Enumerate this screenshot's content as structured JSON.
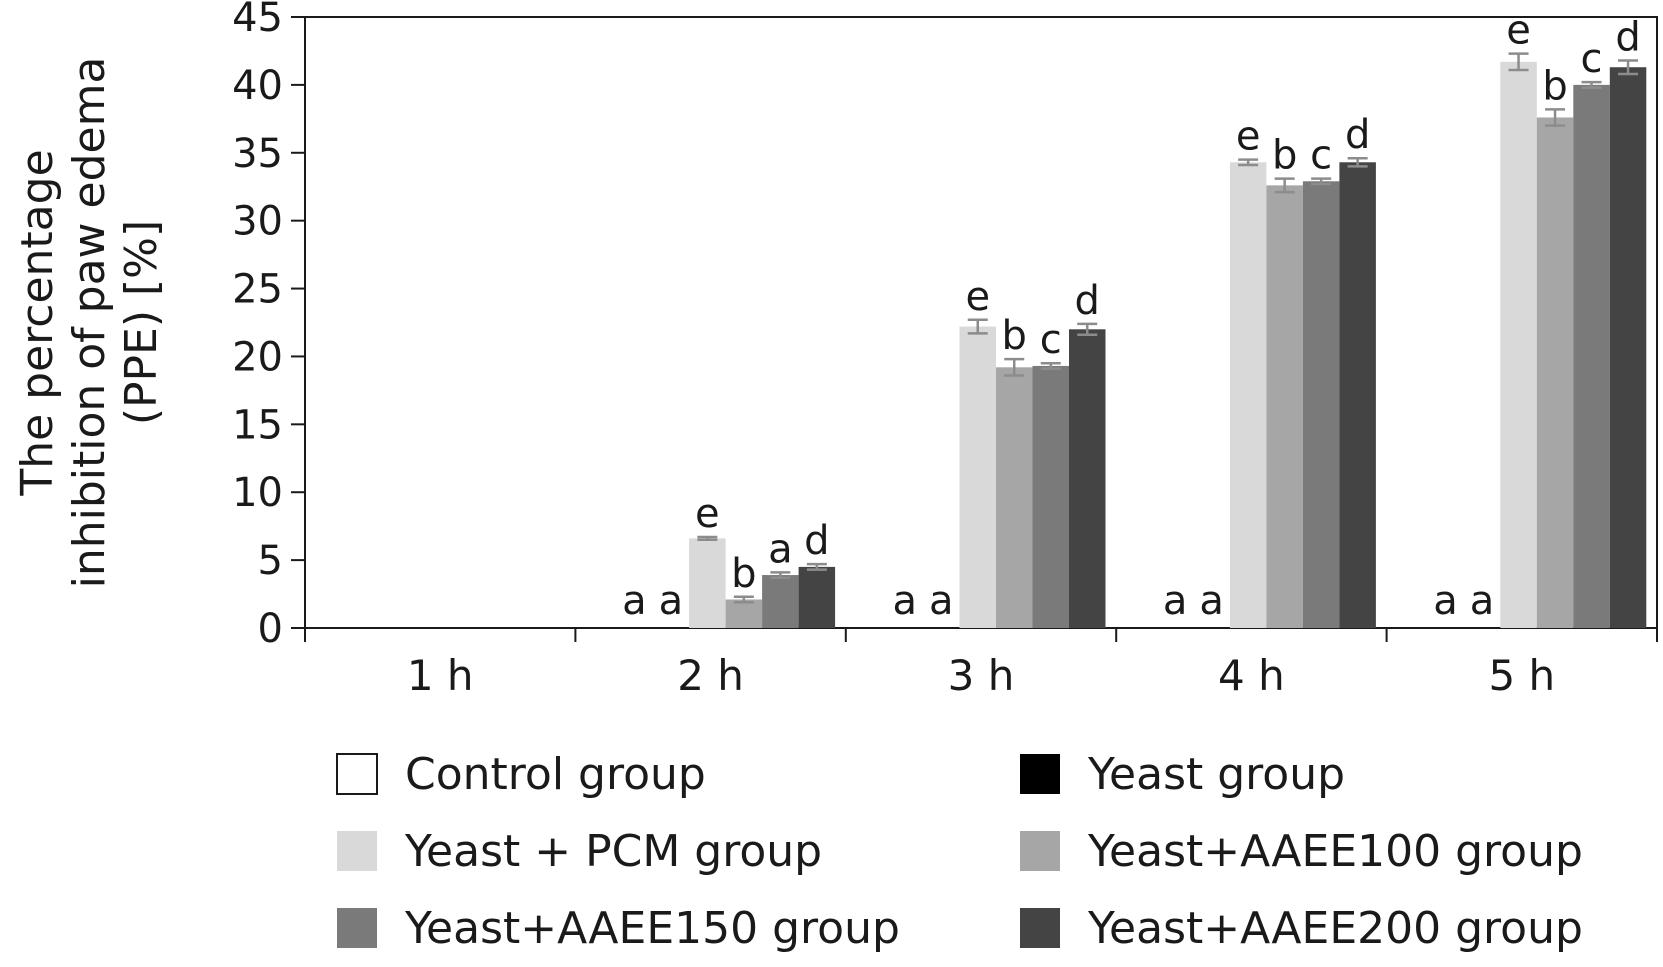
{
  "chart_data": {
    "type": "bar",
    "ylabel": [
      "The percentage",
      "inhibition of paw edema",
      "(PPE) [%]"
    ],
    "categories": [
      "1 h",
      "2 h",
      "3 h",
      "4 h",
      "5 h"
    ],
    "ylim": [
      0,
      45
    ],
    "yticks": [
      0,
      5,
      10,
      15,
      20,
      25,
      30,
      35,
      40,
      45
    ],
    "grid": false,
    "legend_position": "bottom",
    "series": [
      {
        "name": "Control group",
        "color": "#ffffff",
        "values": [
          0,
          0,
          0,
          0,
          0
        ],
        "errors": [
          0,
          0,
          0,
          0,
          0
        ],
        "labels": [
          "",
          "a",
          "a",
          "a",
          "a"
        ]
      },
      {
        "name": "Yeast group",
        "color": "#000000",
        "values": [
          0,
          0,
          0,
          0,
          0
        ],
        "errors": [
          0,
          0,
          0,
          0,
          0
        ],
        "labels": [
          "",
          "a",
          "a",
          "a",
          "a"
        ]
      },
      {
        "name": "Yeast + PCM group",
        "color": "#d9d9d9",
        "values": [
          0,
          6.6,
          22.2,
          34.3,
          41.7
        ],
        "errors": [
          0,
          0.1,
          0.5,
          0.2,
          0.6
        ],
        "labels": [
          "",
          "e",
          "e",
          "e",
          "e"
        ]
      },
      {
        "name": "Yeast+AAEE100 group",
        "color": "#a6a6a6",
        "values": [
          0,
          2.1,
          19.2,
          32.6,
          37.6
        ],
        "errors": [
          0,
          0.2,
          0.6,
          0.5,
          0.6
        ],
        "labels": [
          "",
          "b",
          "b",
          "b",
          "b"
        ]
      },
      {
        "name": "Yeast+AAEE150 group",
        "color": "#7a7a7a",
        "values": [
          0,
          3.9,
          19.3,
          32.9,
          40.0
        ],
        "errors": [
          0,
          0.2,
          0.2,
          0.2,
          0.2
        ],
        "labels": [
          "",
          "a",
          "c",
          "c",
          "c"
        ]
      },
      {
        "name": "Yeast+AAEE200 group",
        "color": "#444444",
        "values": [
          0,
          4.5,
          22.0,
          34.3,
          41.3
        ],
        "errors": [
          0,
          0.2,
          0.4,
          0.3,
          0.5
        ],
        "labels": [
          "",
          "d",
          "d",
          "d",
          "d"
        ]
      }
    ],
    "legend_order": [
      0,
      1,
      2,
      3,
      4,
      5
    ],
    "error_bar_color": "#8c8c8c"
  }
}
